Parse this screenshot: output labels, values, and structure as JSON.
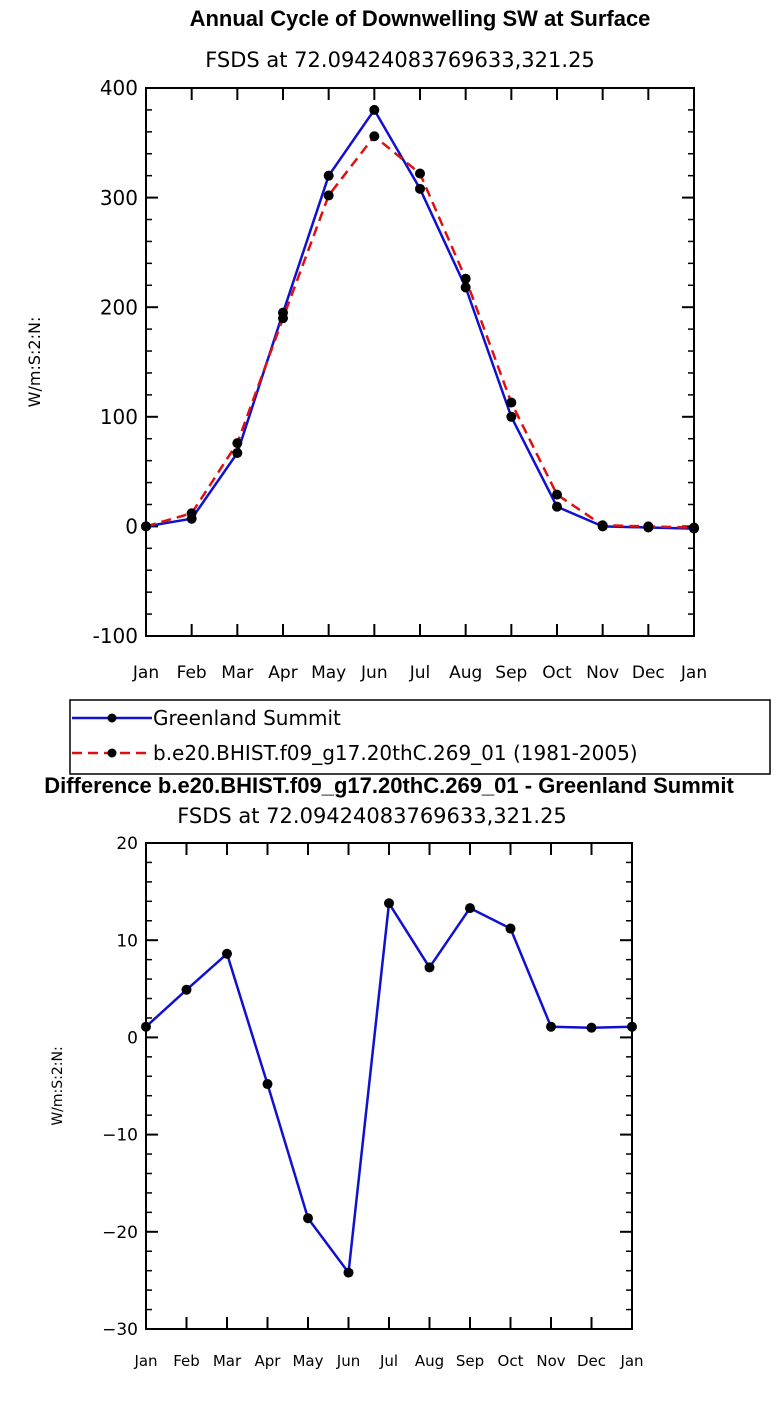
{
  "chart_data": [
    {
      "type": "line",
      "title": "Annual Cycle of Downwelling SW at Surface",
      "subtitle": "FSDS at 72.09424083769633,321.25",
      "ylabel": "W/m:S:2:N:",
      "xlabel": "",
      "categories": [
        "Jan",
        "Feb",
        "Mar",
        "Apr",
        "May",
        "Jun",
        "Jul",
        "Aug",
        "Sep",
        "Oct",
        "Nov",
        "Dec",
        "Jan"
      ],
      "ylim": [
        -100,
        400
      ],
      "yticks": [
        "-100",
        "0",
        "100",
        "200",
        "300",
        "400"
      ],
      "series": [
        {
          "name": "Greenland Summit",
          "color": "#1010d0",
          "style": "solid",
          "values": [
            0,
            7,
            67,
            195,
            320,
            380,
            308,
            218,
            100,
            18,
            0,
            -1,
            -2
          ]
        },
        {
          "name": "b.e20.BHIST.f09_g17.20thC.269_01 (1981-2005)",
          "color": "#e01010",
          "style": "dashed",
          "values": [
            0,
            12,
            76,
            190,
            302,
            356,
            322,
            226,
            113,
            29,
            1,
            0,
            -1
          ]
        }
      ],
      "legend": "below-left"
    },
    {
      "type": "line",
      "title": "Difference b.e20.BHIST.f09_g17.20thC.269_01 - Greenland Summit",
      "subtitle": "FSDS at 72.09424083769633,321.25",
      "ylabel": "W/m:S:2:N:",
      "xlabel": "",
      "categories": [
        "Jan",
        "Feb",
        "Mar",
        "Apr",
        "May",
        "Jun",
        "Jul",
        "Aug",
        "Sep",
        "Oct",
        "Nov",
        "Dec",
        "Jan"
      ],
      "ylim": [
        -30,
        20
      ],
      "yticks": [
        "−30",
        "−20",
        "−10",
        "0",
        "10",
        "20"
      ],
      "series": [
        {
          "name": "Difference",
          "color": "#1010d0",
          "style": "solid",
          "values": [
            1.1,
            4.9,
            8.6,
            -4.8,
            -18.6,
            -24.2,
            13.8,
            7.2,
            13.3,
            11.2,
            1.1,
            1.0,
            1.1
          ]
        }
      ]
    }
  ]
}
